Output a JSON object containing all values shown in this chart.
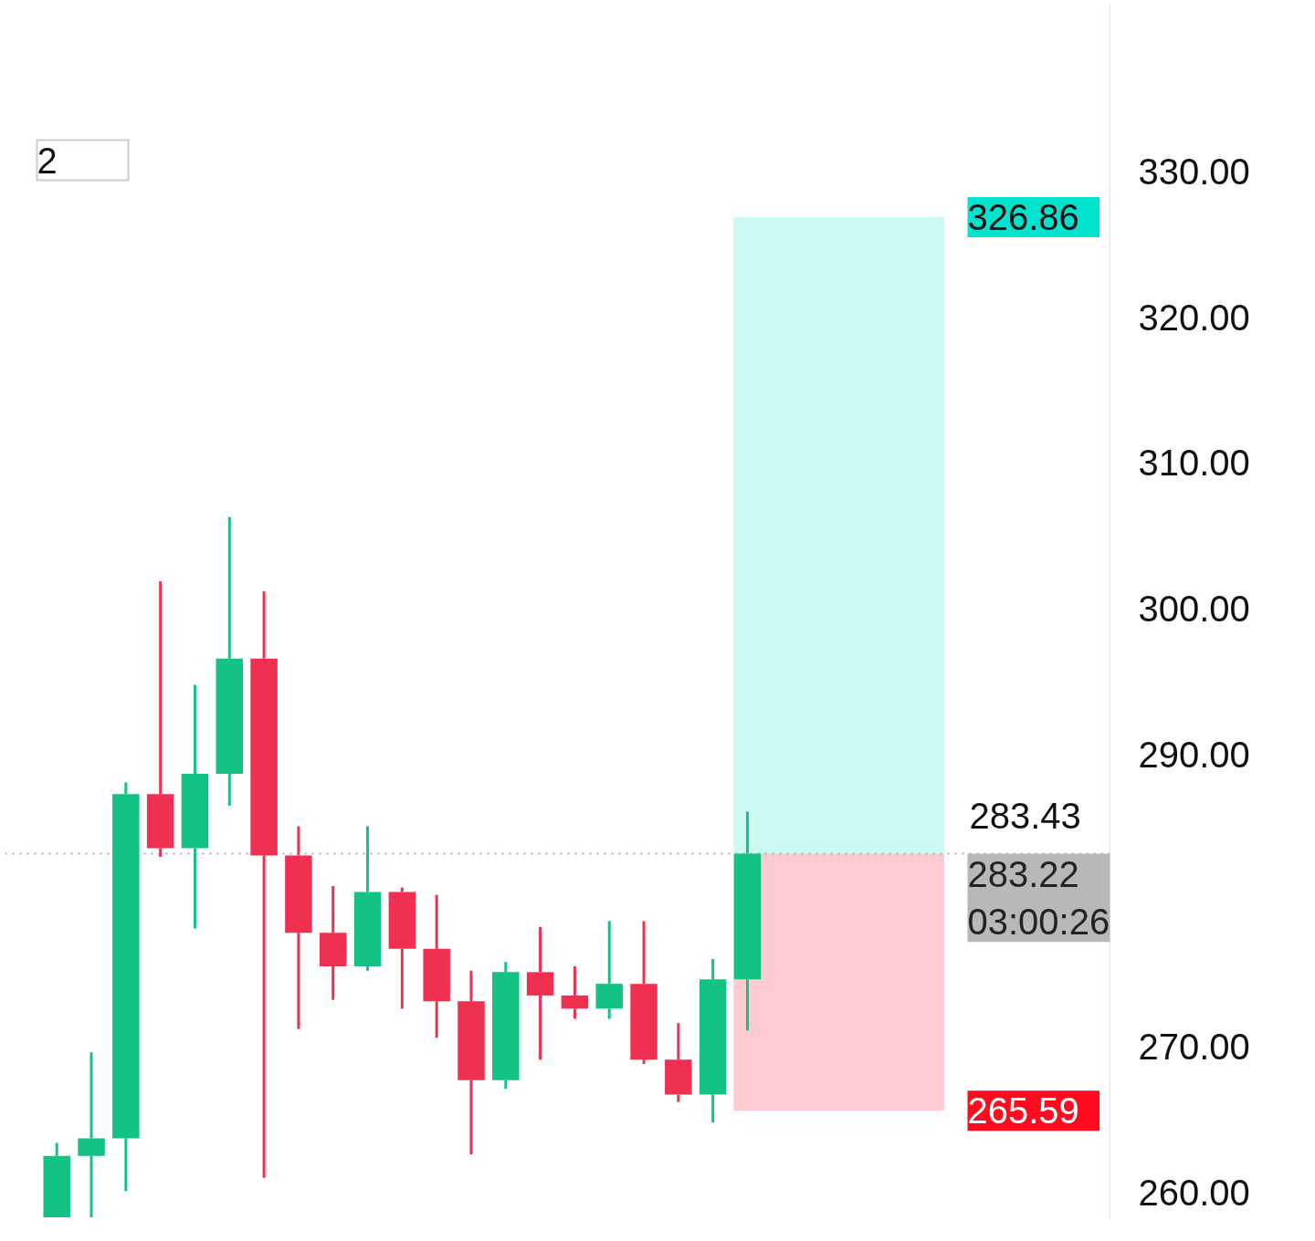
{
  "chart_data": {
    "type": "candlestick",
    "categories": [
      null,
      null,
      null,
      null,
      null,
      null,
      null,
      null,
      null,
      null,
      null,
      null,
      null,
      null,
      null,
      null,
      null,
      null,
      null,
      null,
      null,
      null,
      null,
      null,
      null,
      null,
      null,
      null,
      null,
      null,
      null,
      null
    ],
    "ohlc": [
      null,
      [
        258.3,
        263.4,
        258.3,
        262.5
      ],
      [
        262.5,
        269.6,
        258.3,
        263.7
      ],
      [
        263.7,
        288.1,
        260.1,
        287.3
      ],
      [
        287.3,
        301.9,
        283.0,
        283.6
      ],
      [
        283.6,
        294.8,
        278.1,
        288.7
      ],
      [
        288.7,
        306.3,
        286.5,
        296.6
      ],
      [
        296.6,
        301.2,
        261.0,
        283.1
      ],
      [
        283.1,
        285.1,
        271.2,
        277.8
      ],
      [
        277.8,
        281.0,
        273.2,
        275.5
      ],
      [
        275.5,
        285.1,
        275.2,
        280.6
      ],
      [
        280.6,
        280.9,
        272.6,
        276.7
      ],
      [
        276.7,
        280.4,
        270.6,
        273.1
      ],
      [
        273.1,
        275.2,
        262.6,
        267.7
      ],
      [
        267.7,
        275.8,
        267.1,
        275.1
      ],
      [
        275.1,
        278.2,
        269.1,
        273.5
      ],
      [
        273.5,
        275.5,
        271.9,
        272.6
      ],
      [
        272.6,
        278.6,
        271.9,
        274.3
      ],
      [
        274.3,
        278.6,
        268.8,
        269.1
      ],
      [
        269.1,
        271.6,
        266.2,
        266.7
      ],
      [
        266.7,
        276.0,
        264.8,
        274.6
      ],
      [
        274.6,
        286.1,
        271.1,
        283.22
      ],
      null,
      null,
      null,
      null,
      null,
      null,
      null,
      null,
      null,
      null
    ],
    "colors": [
      null,
      "#14c283",
      "#14c283",
      "#14c283",
      "#ef3050",
      "#14c283",
      "#14c283",
      "#ef3050",
      "#ef3050",
      "#ef3050",
      "#14c283",
      "#ef3050",
      "#ef3050",
      "#ef3050",
      "#14c283",
      "#ef3050",
      "#ef3050",
      "#14c283",
      "#ef3050",
      "#ef3050",
      "#14c283",
      "#14c283",
      null,
      null,
      null,
      null,
      null,
      null,
      null,
      null,
      null,
      null
    ],
    "ylim": [
      258.2,
      341.4
    ],
    "yticks": [
      {
        "value": 260,
        "label": "260.00"
      },
      {
        "value": 270,
        "label": "270.00"
      },
      {
        "value": 290,
        "label": "290.00"
      },
      {
        "value": 300,
        "label": "300.00"
      },
      {
        "value": 310,
        "label": "310.00"
      },
      {
        "value": 320,
        "label": "320.00"
      },
      {
        "value": 330,
        "label": "330.00"
      }
    ],
    "tick_labels": "y",
    "grid": false,
    "bands": [
      {
        "axis": "y",
        "from": 283.22,
        "to": 326.86,
        "label": "326.86",
        "color": "#ccf9f1"
      },
      {
        "axis": "y",
        "from": 265.59,
        "to": 283.22,
        "label": "265.59",
        "color": "#fdcbd2"
      }
    ],
    "ref_lines": [
      {
        "axis": "y",
        "value": 283.22,
        "label": "283.22",
        "color": "#aaaaaa",
        "line_style": "dotted"
      }
    ],
    "annotations": [
      {
        "text": "283.43",
        "y": 283.43
      },
      "03:00:26",
      "2"
    ]
  }
}
